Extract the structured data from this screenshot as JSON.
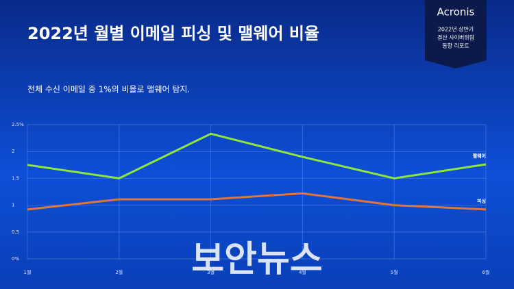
{
  "chart_data": {
    "type": "line",
    "title": "2022년 월별 이메일 피싱 및 맬웨어 비율",
    "subtitle": "전체 수신 이메일 중 1%의 비율로 맬웨어 탐지.",
    "categories": [
      "1월",
      "2월",
      "3월",
      "4월",
      "5월",
      "6월"
    ],
    "series": [
      {
        "name": "맬웨어",
        "color": "#8fe63c",
        "values": [
          1.75,
          1.5,
          2.33,
          1.9,
          1.5,
          1.76
        ]
      },
      {
        "name": "피싱",
        "color": "#e0763a",
        "values": [
          0.92,
          1.11,
          1.11,
          1.22,
          1.0,
          0.92
        ]
      }
    ],
    "ylim": [
      0,
      2.5
    ],
    "yticks": [
      {
        "value": 0,
        "label": "0%"
      },
      0.5,
      1,
      1.5,
      2,
      {
        "value": 2.5,
        "label": "2.5%"
      }
    ],
    "grid": true
  },
  "badge": {
    "brand": "Acronis",
    "lines": [
      "2022년 상반기",
      "결산 사이버위협",
      "동향 리포트"
    ]
  },
  "watermark": "보안뉴스"
}
